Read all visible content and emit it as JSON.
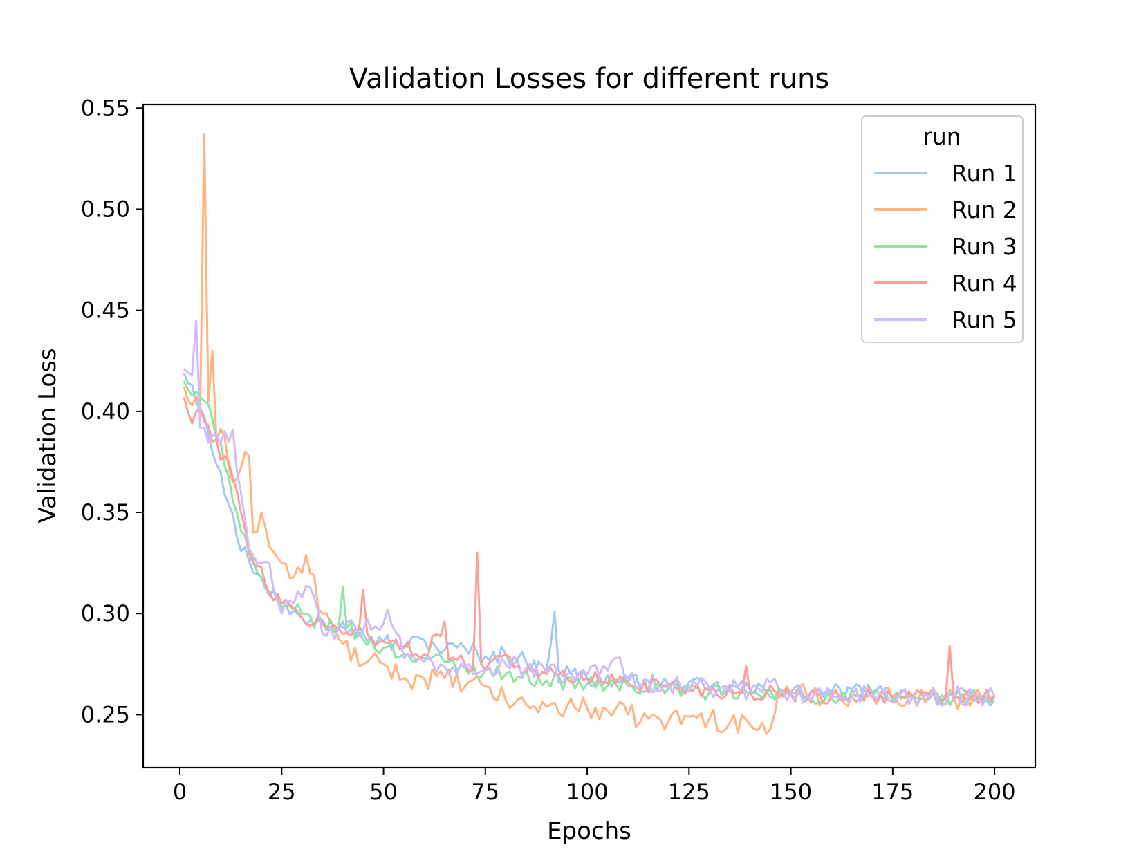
{
  "chart_data": {
    "type": "line",
    "title": "Validation Losses for different runs",
    "xlabel": "Epochs",
    "ylabel": "Validation Loss",
    "xlim": [
      -9,
      210
    ],
    "ylim": [
      0.2238,
      0.5518
    ],
    "xticks": [
      0,
      25,
      50,
      75,
      100,
      125,
      150,
      175,
      200
    ],
    "yticks": [
      0.25,
      0.3,
      0.35,
      0.4,
      0.45,
      0.5,
      0.55
    ],
    "ytick_labels": [
      "0.25",
      "0.30",
      "0.35",
      "0.40",
      "0.45",
      "0.50",
      "0.55"
    ],
    "legend": {
      "title": "run",
      "position": "upper right"
    },
    "epochs": {
      "start": 1,
      "end": 200
    },
    "series": [
      {
        "name": "Run 1",
        "color": "#a1c9f4",
        "keypoints": [
          [
            1,
            0.419
          ],
          [
            3,
            0.413
          ],
          [
            6,
            0.398
          ],
          [
            10,
            0.37
          ],
          [
            14,
            0.338
          ],
          [
            17,
            0.326
          ],
          [
            20,
            0.318
          ],
          [
            25,
            0.303
          ],
          [
            30,
            0.298
          ],
          [
            35,
            0.297
          ],
          [
            40,
            0.296
          ],
          [
            45,
            0.29
          ],
          [
            50,
            0.286
          ],
          [
            55,
            0.284
          ],
          [
            60,
            0.287
          ],
          [
            65,
            0.282
          ],
          [
            70,
            0.283
          ],
          [
            75,
            0.279
          ],
          [
            80,
            0.28
          ],
          [
            85,
            0.276
          ],
          [
            90,
            0.272
          ],
          [
            92,
            0.301
          ],
          [
            93,
            0.272
          ],
          [
            100,
            0.268
          ],
          [
            110,
            0.266
          ],
          [
            120,
            0.265
          ],
          [
            130,
            0.263
          ],
          [
            140,
            0.262
          ],
          [
            150,
            0.261
          ],
          [
            160,
            0.261
          ],
          [
            170,
            0.261
          ],
          [
            180,
            0.259
          ],
          [
            190,
            0.259
          ],
          [
            200,
            0.257
          ]
        ],
        "noise": 0.0045
      },
      {
        "name": "Run 2",
        "color": "#ffb482",
        "keypoints": [
          [
            1,
            0.412
          ],
          [
            3,
            0.403
          ],
          [
            5,
            0.402
          ],
          [
            6,
            0.537
          ],
          [
            7,
            0.405
          ],
          [
            8,
            0.43
          ],
          [
            9,
            0.385
          ],
          [
            11,
            0.388
          ],
          [
            13,
            0.365
          ],
          [
            15,
            0.372
          ],
          [
            16,
            0.38
          ],
          [
            17,
            0.378
          ],
          [
            18,
            0.34
          ],
          [
            20,
            0.35
          ],
          [
            22,
            0.333
          ],
          [
            25,
            0.325
          ],
          [
            28,
            0.318
          ],
          [
            30,
            0.32
          ],
          [
            31,
            0.329
          ],
          [
            35,
            0.3
          ],
          [
            40,
            0.285
          ],
          [
            45,
            0.275
          ],
          [
            50,
            0.275
          ],
          [
            55,
            0.268
          ],
          [
            60,
            0.268
          ],
          [
            65,
            0.268
          ],
          [
            70,
            0.264
          ],
          [
            75,
            0.264
          ],
          [
            80,
            0.257
          ],
          [
            85,
            0.255
          ],
          [
            90,
            0.254
          ],
          [
            95,
            0.254
          ],
          [
            100,
            0.253
          ],
          [
            105,
            0.252
          ],
          [
            110,
            0.25
          ],
          [
            115,
            0.248
          ],
          [
            120,
            0.247
          ],
          [
            125,
            0.249
          ],
          [
            130,
            0.248
          ],
          [
            135,
            0.246
          ],
          [
            140,
            0.245
          ],
          [
            145,
            0.243
          ],
          [
            147,
            0.262
          ],
          [
            150,
            0.26
          ],
          [
            160,
            0.26
          ],
          [
            170,
            0.259
          ],
          [
            180,
            0.259
          ],
          [
            190,
            0.258
          ],
          [
            200,
            0.259
          ]
        ],
        "noise": 0.0055
      },
      {
        "name": "Run 3",
        "color": "#8de5a1",
        "keypoints": [
          [
            1,
            0.415
          ],
          [
            3,
            0.408
          ],
          [
            6,
            0.405
          ],
          [
            10,
            0.385
          ],
          [
            14,
            0.35
          ],
          [
            17,
            0.33
          ],
          [
            20,
            0.318
          ],
          [
            22,
            0.31
          ],
          [
            25,
            0.303
          ],
          [
            30,
            0.3
          ],
          [
            35,
            0.295
          ],
          [
            39,
            0.293
          ],
          [
            40,
            0.313
          ],
          [
            41,
            0.293
          ],
          [
            45,
            0.287
          ],
          [
            50,
            0.283
          ],
          [
            55,
            0.28
          ],
          [
            60,
            0.278
          ],
          [
            65,
            0.276
          ],
          [
            70,
            0.273
          ],
          [
            75,
            0.272
          ],
          [
            80,
            0.27
          ],
          [
            90,
            0.267
          ],
          [
            100,
            0.265
          ],
          [
            110,
            0.264
          ],
          [
            120,
            0.263
          ],
          [
            130,
            0.261
          ],
          [
            140,
            0.26
          ],
          [
            150,
            0.26
          ],
          [
            160,
            0.258
          ],
          [
            170,
            0.259
          ],
          [
            180,
            0.259
          ],
          [
            190,
            0.258
          ],
          [
            200,
            0.259
          ]
        ],
        "noise": 0.004
      },
      {
        "name": "Run 4",
        "color": "#ff9f9b",
        "keypoints": [
          [
            1,
            0.407
          ],
          [
            3,
            0.394
          ],
          [
            5,
            0.402
          ],
          [
            8,
            0.385
          ],
          [
            12,
            0.375
          ],
          [
            15,
            0.35
          ],
          [
            17,
            0.33
          ],
          [
            20,
            0.323
          ],
          [
            22,
            0.31
          ],
          [
            25,
            0.305
          ],
          [
            30,
            0.298
          ],
          [
            35,
            0.295
          ],
          [
            40,
            0.29
          ],
          [
            44,
            0.292
          ],
          [
            45,
            0.312
          ],
          [
            46,
            0.29
          ],
          [
            50,
            0.286
          ],
          [
            55,
            0.283
          ],
          [
            60,
            0.28
          ],
          [
            65,
            0.296
          ],
          [
            66,
            0.277
          ],
          [
            70,
            0.275
          ],
          [
            72,
            0.272
          ],
          [
            73,
            0.33
          ],
          [
            74,
            0.275
          ],
          [
            80,
            0.28
          ],
          [
            85,
            0.272
          ],
          [
            90,
            0.27
          ],
          [
            100,
            0.268
          ],
          [
            110,
            0.266
          ],
          [
            120,
            0.264
          ],
          [
            130,
            0.262
          ],
          [
            138,
            0.261
          ],
          [
            139,
            0.274
          ],
          [
            140,
            0.261
          ],
          [
            150,
            0.26
          ],
          [
            160,
            0.259
          ],
          [
            170,
            0.259
          ],
          [
            180,
            0.259
          ],
          [
            188,
            0.258
          ],
          [
            189,
            0.284
          ],
          [
            190,
            0.258
          ],
          [
            200,
            0.259
          ]
        ],
        "noise": 0.004
      },
      {
        "name": "Run 5",
        "color": "#d0bbff",
        "keypoints": [
          [
            1,
            0.421
          ],
          [
            3,
            0.418
          ],
          [
            4,
            0.445
          ],
          [
            5,
            0.392
          ],
          [
            8,
            0.388
          ],
          [
            12,
            0.385
          ],
          [
            13,
            0.391
          ],
          [
            15,
            0.36
          ],
          [
            17,
            0.332
          ],
          [
            20,
            0.325
          ],
          [
            22,
            0.325
          ],
          [
            25,
            0.3
          ],
          [
            28,
            0.305
          ],
          [
            30,
            0.308
          ],
          [
            32,
            0.313
          ],
          [
            35,
            0.29
          ],
          [
            40,
            0.293
          ],
          [
            45,
            0.292
          ],
          [
            50,
            0.295
          ],
          [
            51,
            0.302
          ],
          [
            55,
            0.278
          ],
          [
            60,
            0.276
          ],
          [
            65,
            0.274
          ],
          [
            70,
            0.274
          ],
          [
            75,
            0.272
          ],
          [
            80,
            0.275
          ],
          [
            85,
            0.273
          ],
          [
            90,
            0.271
          ],
          [
            95,
            0.27
          ],
          [
            100,
            0.27
          ],
          [
            107,
            0.278
          ],
          [
            110,
            0.268
          ],
          [
            120,
            0.265
          ],
          [
            130,
            0.263
          ],
          [
            140,
            0.262
          ],
          [
            145,
            0.266
          ],
          [
            150,
            0.261
          ],
          [
            160,
            0.259
          ],
          [
            170,
            0.26
          ],
          [
            180,
            0.259
          ],
          [
            190,
            0.259
          ],
          [
            200,
            0.259
          ]
        ],
        "noise": 0.005
      }
    ]
  }
}
